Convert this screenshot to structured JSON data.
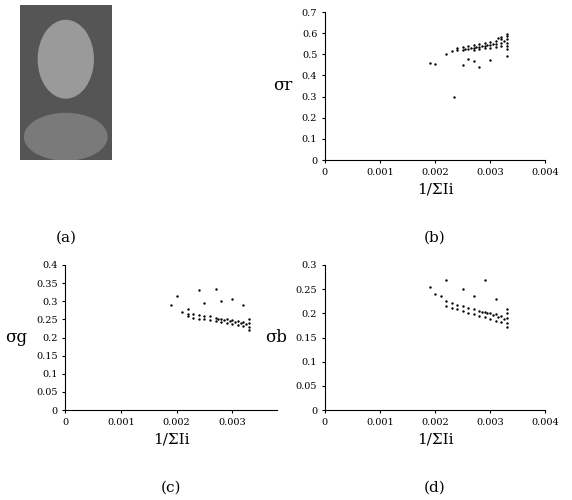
{
  "chart_data": [
    {
      "type": "image",
      "caption": "(a)"
    },
    {
      "type": "scatter",
      "caption": "(b)",
      "x_label": "1/ΣIi",
      "y_label": "σr",
      "color": "#000000",
      "marker": "o",
      "grid": false,
      "xlim": [
        0,
        0.004
      ],
      "xticks": [
        0,
        0.001,
        0.002,
        0.003,
        0.004
      ],
      "ylim": [
        0,
        0.7
      ],
      "yticks": [
        0,
        0.1,
        0.2,
        0.3,
        0.4,
        0.5,
        0.6,
        0.7
      ],
      "x": [
        0.0023,
        0.0024,
        0.0024,
        0.0025,
        0.0025,
        0.0026,
        0.0026,
        0.0027,
        0.0027,
        0.0027,
        0.0028,
        0.0028,
        0.0028,
        0.0029,
        0.0029,
        0.0029,
        0.003,
        0.003,
        0.003,
        0.0031,
        0.0031,
        0.0031,
        0.0032,
        0.0032,
        0.0032,
        0.0032,
        0.0033,
        0.0033,
        0.0033,
        0.0033,
        0.0033,
        0.0033,
        0.00325,
        0.00315,
        0.00305,
        0.00295,
        0.00285,
        0.00275,
        0.00265,
        0.00255,
        0.0019,
        0.002,
        0.00235,
        0.0025,
        0.0026,
        0.0027,
        0.0028,
        0.003,
        0.0033,
        0.0022
      ],
      "values": [
        0.515,
        0.52,
        0.53,
        0.52,
        0.535,
        0.525,
        0.54,
        0.53,
        0.545,
        0.52,
        0.535,
        0.55,
        0.525,
        0.54,
        0.555,
        0.53,
        0.545,
        0.56,
        0.53,
        0.55,
        0.565,
        0.535,
        0.555,
        0.57,
        0.54,
        0.58,
        0.525,
        0.54,
        0.555,
        0.57,
        0.585,
        0.595,
        0.565,
        0.575,
        0.55,
        0.545,
        0.54,
        0.535,
        0.53,
        0.525,
        0.46,
        0.455,
        0.3,
        0.45,
        0.48,
        0.47,
        0.44,
        0.475,
        0.49,
        0.5
      ]
    },
    {
      "type": "scatter",
      "caption": "(c)",
      "x_label": "1/ΣIi",
      "y_label": "σg",
      "color": "#000000",
      "marker": "o",
      "grid": false,
      "xlim": [
        0,
        0.0038
      ],
      "xticks": [
        0,
        0.001,
        0.002,
        0.003
      ],
      "ylim": [
        0,
        0.4
      ],
      "yticks": [
        0,
        0.05,
        0.1,
        0.15,
        0.2,
        0.25,
        0.3,
        0.35,
        0.4
      ],
      "x": [
        0.0021,
        0.0022,
        0.0022,
        0.0023,
        0.0023,
        0.0024,
        0.0024,
        0.0025,
        0.0025,
        0.0026,
        0.0026,
        0.0027,
        0.0027,
        0.0028,
        0.0028,
        0.0029,
        0.0029,
        0.003,
        0.003,
        0.0031,
        0.0031,
        0.0032,
        0.0032,
        0.0033,
        0.0033,
        0.0033,
        0.0033,
        0.00325,
        0.00315,
        0.00305,
        0.00295,
        0.00285,
        0.00275,
        0.0019,
        0.002,
        0.0024,
        0.0025,
        0.0027,
        0.0028,
        0.003,
        0.0032,
        0.0022
      ],
      "values": [
        0.27,
        0.265,
        0.26,
        0.265,
        0.255,
        0.262,
        0.252,
        0.26,
        0.25,
        0.258,
        0.248,
        0.255,
        0.245,
        0.252,
        0.242,
        0.25,
        0.24,
        0.248,
        0.238,
        0.245,
        0.235,
        0.243,
        0.232,
        0.25,
        0.24,
        0.23,
        0.222,
        0.236,
        0.24,
        0.243,
        0.246,
        0.248,
        0.25,
        0.29,
        0.315,
        0.33,
        0.295,
        0.335,
        0.3,
        0.305,
        0.29,
        0.28
      ]
    },
    {
      "type": "scatter",
      "caption": "(d)",
      "x_label": "1/ΣIi",
      "y_label": "σb",
      "color": "#000000",
      "marker": "o",
      "grid": false,
      "xlim": [
        0,
        0.004
      ],
      "xticks": [
        0,
        0.001,
        0.002,
        0.003,
        0.004
      ],
      "ylim": [
        0,
        0.3
      ],
      "yticks": [
        0,
        0.05,
        0.1,
        0.15,
        0.2,
        0.25,
        0.3
      ],
      "x": [
        0.0021,
        0.0022,
        0.0022,
        0.0023,
        0.0023,
        0.0024,
        0.0024,
        0.0025,
        0.0025,
        0.0026,
        0.0026,
        0.0027,
        0.0027,
        0.0028,
        0.0028,
        0.0029,
        0.0029,
        0.003,
        0.003,
        0.0031,
        0.0031,
        0.0032,
        0.0032,
        0.0033,
        0.0033,
        0.0033,
        0.0033,
        0.0033,
        0.00325,
        0.00315,
        0.00305,
        0.00295,
        0.00285,
        0.0019,
        0.002,
        0.0022,
        0.0025,
        0.0029,
        0.0031,
        0.0027
      ],
      "values": [
        0.235,
        0.225,
        0.215,
        0.222,
        0.212,
        0.218,
        0.208,
        0.215,
        0.205,
        0.212,
        0.2,
        0.21,
        0.198,
        0.205,
        0.195,
        0.202,
        0.192,
        0.2,
        0.188,
        0.198,
        0.185,
        0.195,
        0.182,
        0.21,
        0.2,
        0.19,
        0.18,
        0.172,
        0.188,
        0.192,
        0.196,
        0.2,
        0.203,
        0.255,
        0.24,
        0.27,
        0.25,
        0.27,
        0.23,
        0.235
      ]
    }
  ]
}
